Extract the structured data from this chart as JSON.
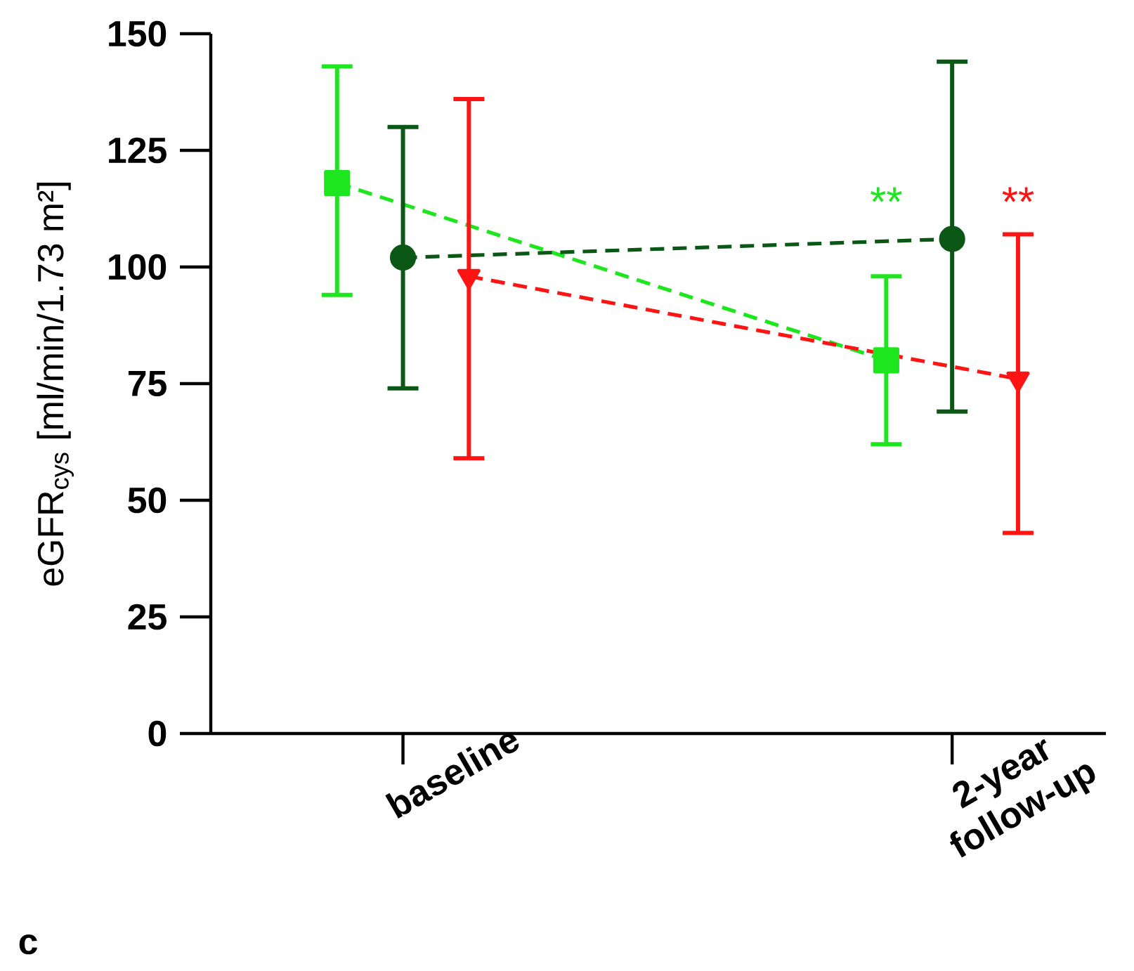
{
  "chart_data": {
    "type": "line",
    "ylabel": "eGFR$_{cys}$ [ml/min/1.73 m²]",
    "categories": [
      "baseline",
      "2-year follow-up"
    ],
    "series": [
      {
        "color": "#1ee61e",
        "marker": "square",
        "values": [
          118,
          80
        ],
        "errors": [
          [
            94,
            143
          ],
          [
            62,
            98
          ]
        ]
      },
      {
        "color": "#0b5716",
        "marker": "circle",
        "values": [
          102,
          106
        ],
        "errors": [
          [
            74,
            130
          ],
          [
            69,
            144
          ]
        ]
      },
      {
        "color": "#ff1414",
        "marker": "triangle",
        "values": [
          98,
          76
        ],
        "errors": [
          [
            59,
            136
          ],
          [
            43,
            107
          ]
        ]
      }
    ],
    "line_style": "dashed",
    "ylim": [
      0,
      150
    ],
    "yticks": [
      0,
      25,
      50,
      75,
      100,
      125,
      150
    ],
    "annotations": [
      "**",
      "**",
      "c"
    ]
  }
}
